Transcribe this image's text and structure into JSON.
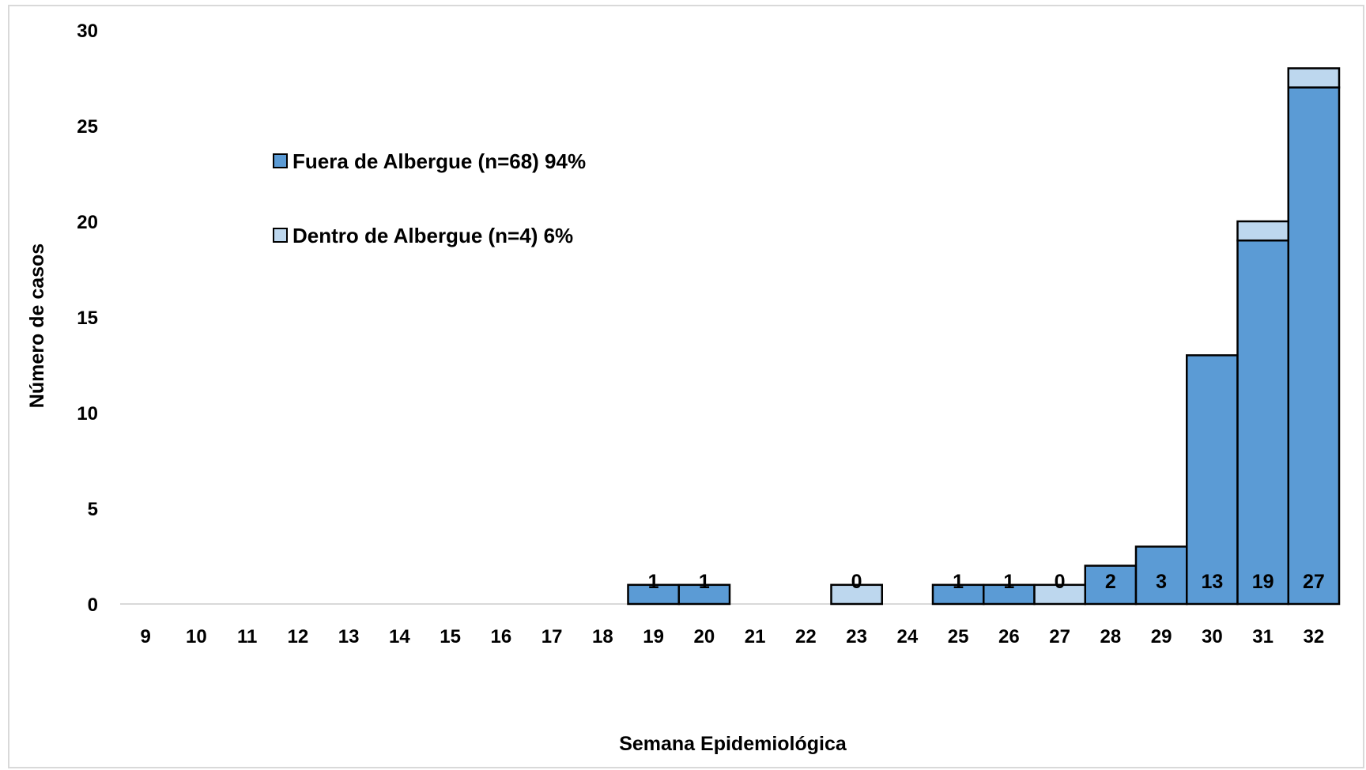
{
  "chart_data": {
    "type": "bar",
    "stacked": true,
    "xlabel": "Semana Epidemiológica",
    "ylabel": "Número de casos",
    "ylim": [
      0,
      30
    ],
    "yticks": [
      0,
      5,
      10,
      15,
      20,
      25,
      30
    ],
    "categories": [
      "9",
      "10",
      "11",
      "12",
      "13",
      "14",
      "15",
      "16",
      "17",
      "18",
      "19",
      "20",
      "21",
      "22",
      "23",
      "24",
      "25",
      "26",
      "27",
      "28",
      "29",
      "30",
      "31",
      "32"
    ],
    "series": [
      {
        "name": "Fuera de Albergue (n=68) 94%",
        "color": "#5b9bd5",
        "values": [
          0,
          0,
          0,
          0,
          0,
          0,
          0,
          0,
          0,
          0,
          1,
          1,
          0,
          0,
          0,
          0,
          1,
          1,
          0,
          2,
          3,
          13,
          19,
          27
        ]
      },
      {
        "name": "Dentro de Albergue (n=4) 6%",
        "color": "#bdd7ee",
        "values": [
          0,
          0,
          0,
          0,
          0,
          0,
          0,
          0,
          0,
          0,
          0,
          0,
          0,
          0,
          1,
          0,
          0,
          0,
          1,
          0,
          0,
          0,
          1,
          1
        ]
      }
    ],
    "data_labels": [
      "",
      "",
      "",
      "",
      "",
      "",
      "",
      "",
      "",
      "",
      "1",
      "1",
      "",
      "",
      "0",
      "",
      "1",
      "1",
      "0",
      "2",
      "3",
      "13",
      "19",
      "27"
    ],
    "grid": false,
    "legend_position": "upper-left-inside"
  }
}
